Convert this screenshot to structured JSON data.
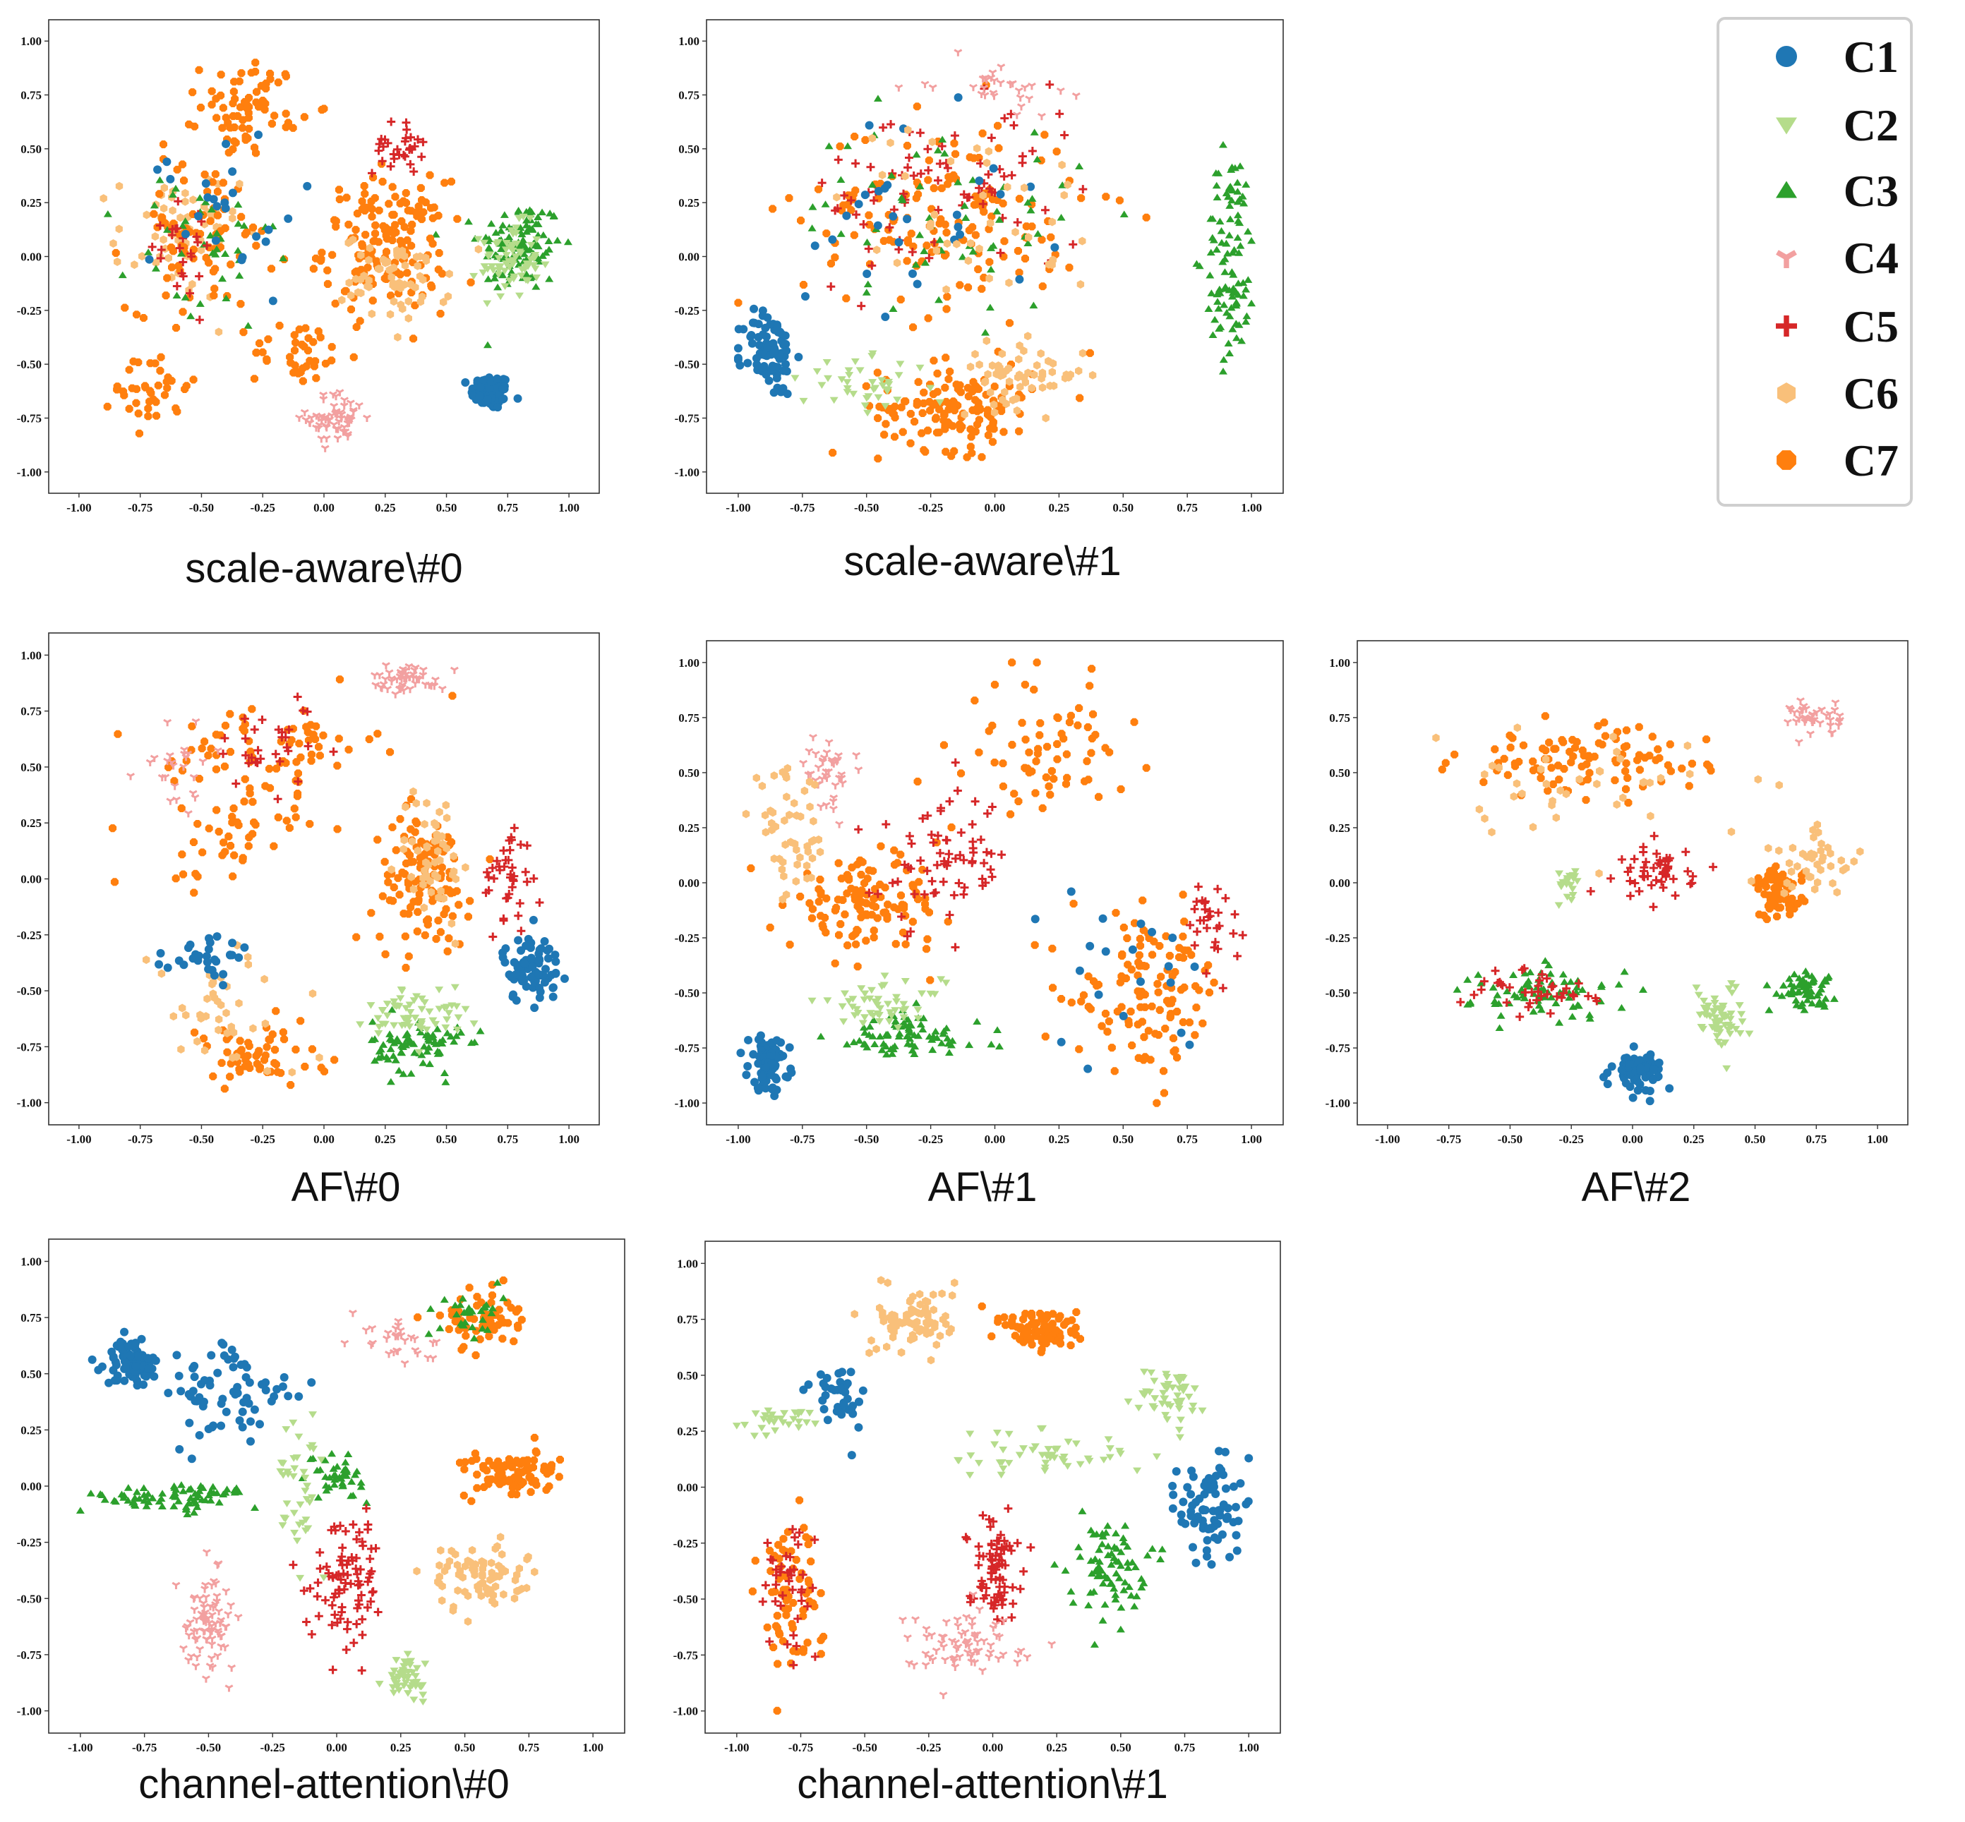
{
  "colors": {
    "C1": "#1f77b4",
    "C2": "#b5dc8b",
    "C3": "#2ca02c",
    "C4": "#f2a0a0",
    "C5": "#d62728",
    "C6": "#f9c07a",
    "C7": "#ff7f0e"
  },
  "legend": [
    {
      "label": "C1",
      "marker": "circle"
    },
    {
      "label": "C2",
      "marker": "triangle-down"
    },
    {
      "label": "C3",
      "marker": "triangle-up"
    },
    {
      "label": "C4",
      "marker": "tri-down"
    },
    {
      "label": "C5",
      "marker": "plus"
    },
    {
      "label": "C6",
      "marker": "hexagon"
    },
    {
      "label": "C7",
      "marker": "octagon"
    }
  ],
  "chart_data": [
    {
      "type": "scatter",
      "title": "scale-aware\\#0",
      "xlim": [
        -1.0,
        1.0
      ],
      "ylim": [
        -1.0,
        1.0
      ],
      "xticks": [
        "-1.00",
        "-0.75",
        "-0.50",
        "-0.25",
        "0.00",
        "0.25",
        "0.50",
        "0.75",
        "1.00"
      ],
      "yticks": [
        "1.00",
        "0.75",
        "0.50",
        "0.25",
        "0.00",
        "-0.25",
        "-0.50",
        "-0.75",
        "-1.00"
      ],
      "clusters": [
        {
          "class": "C1",
          "cx": 0.68,
          "cy": -0.63,
          "rx": 0.08,
          "ry": 0.08,
          "n": 90
        },
        {
          "class": "C3",
          "cx": 0.8,
          "cy": 0.05,
          "rx": 0.17,
          "ry": 0.22,
          "n": 110
        },
        {
          "class": "C2",
          "cx": 0.76,
          "cy": -0.02,
          "rx": 0.12,
          "ry": 0.17,
          "n": 70
        },
        {
          "class": "C4",
          "cx": 0.05,
          "cy": -0.75,
          "rx": 0.12,
          "ry": 0.12,
          "n": 60
        },
        {
          "class": "C7",
          "cx": 0.25,
          "cy": 0.05,
          "rx": 0.25,
          "ry": 0.3,
          "n": 160
        },
        {
          "class": "C6",
          "cx": 0.3,
          "cy": -0.1,
          "rx": 0.22,
          "ry": 0.2,
          "n": 60
        },
        {
          "class": "C5",
          "cx": 0.3,
          "cy": 0.5,
          "rx": 0.1,
          "ry": 0.12,
          "n": 30
        },
        {
          "class": "C7",
          "cx": -0.3,
          "cy": 0.7,
          "rx": 0.2,
          "ry": 0.2,
          "n": 70
        },
        {
          "class": "C6",
          "cx": -0.6,
          "cy": 0.1,
          "rx": 0.25,
          "ry": 0.3,
          "n": 60
        },
        {
          "class": "C7",
          "cx": -0.5,
          "cy": 0.1,
          "rx": 0.3,
          "ry": 0.35,
          "n": 80
        },
        {
          "class": "C3",
          "cx": -0.5,
          "cy": 0.0,
          "rx": 0.3,
          "ry": 0.4,
          "n": 40
        },
        {
          "class": "C5",
          "cx": -0.6,
          "cy": 0.1,
          "rx": 0.2,
          "ry": 0.3,
          "n": 25
        },
        {
          "class": "C1",
          "cx": -0.4,
          "cy": 0.2,
          "rx": 0.3,
          "ry": 0.4,
          "n": 25
        },
        {
          "class": "C7",
          "cx": -0.7,
          "cy": -0.6,
          "rx": 0.15,
          "ry": 0.2,
          "n": 40
        },
        {
          "class": "C7",
          "cx": -0.1,
          "cy": -0.45,
          "rx": 0.2,
          "ry": 0.15,
          "n": 40
        }
      ]
    },
    {
      "type": "scatter",
      "title": "scale-aware\\#1",
      "xlim": [
        -1.0,
        1.0
      ],
      "ylim": [
        -1.0,
        1.0
      ],
      "xticks": [
        "-1.00",
        "-0.75",
        "-0.50",
        "-0.25",
        "0.00",
        "0.25",
        "0.50",
        "0.75",
        "1.00"
      ],
      "yticks": [
        "1.00",
        "0.75",
        "0.50",
        "0.25",
        "0.00",
        "-0.25",
        "-0.50",
        "-0.75",
        "-1.00"
      ],
      "clusters": [
        {
          "class": "C1",
          "cx": -0.88,
          "cy": -0.45,
          "rx": 0.1,
          "ry": 0.2,
          "n": 90
        },
        {
          "class": "C3",
          "cx": 0.92,
          "cy": 0.0,
          "rx": 0.1,
          "ry": 0.5,
          "n": 100
        },
        {
          "class": "C7",
          "cx": -0.15,
          "cy": -0.7,
          "rx": 0.3,
          "ry": 0.2,
          "n": 140
        },
        {
          "class": "C6",
          "cx": 0.1,
          "cy": -0.55,
          "rx": 0.25,
          "ry": 0.15,
          "n": 60
        },
        {
          "class": "C2",
          "cx": -0.5,
          "cy": -0.6,
          "rx": 0.25,
          "ry": 0.12,
          "n": 40
        },
        {
          "class": "C7",
          "cx": -0.2,
          "cy": 0.2,
          "rx": 0.55,
          "ry": 0.45,
          "n": 150
        },
        {
          "class": "C5",
          "cx": -0.2,
          "cy": 0.3,
          "rx": 0.55,
          "ry": 0.4,
          "n": 80
        },
        {
          "class": "C3",
          "cx": -0.2,
          "cy": 0.2,
          "rx": 0.55,
          "ry": 0.45,
          "n": 60
        },
        {
          "class": "C1",
          "cx": -0.3,
          "cy": 0.2,
          "rx": 0.5,
          "ry": 0.45,
          "n": 30
        },
        {
          "class": "C4",
          "cx": 0.0,
          "cy": 0.8,
          "rx": 0.25,
          "ry": 0.12,
          "n": 30
        },
        {
          "class": "C6",
          "cx": -0.1,
          "cy": 0.2,
          "rx": 0.5,
          "ry": 0.45,
          "n": 40
        }
      ]
    },
    {
      "type": "scatter",
      "title": "AF\\#0",
      "xlim": [
        -1.0,
        1.0
      ],
      "ylim": [
        -1.0,
        1.0
      ],
      "xticks": [
        "-1.00",
        "-0.75",
        "-0.50",
        "-0.25",
        "0.00",
        "0.25",
        "0.50",
        "0.75",
        "1.00"
      ],
      "yticks": [
        "1.00",
        "0.75",
        "0.50",
        "0.25",
        "0.00",
        "-0.25",
        "-0.50",
        "-0.75",
        "-1.00"
      ],
      "clusters": [
        {
          "class": "C1",
          "cx": 0.85,
          "cy": -0.4,
          "rx": 0.12,
          "ry": 0.15,
          "n": 80
        },
        {
          "class": "C3",
          "cx": 0.38,
          "cy": -0.75,
          "rx": 0.18,
          "ry": 0.12,
          "n": 80
        },
        {
          "class": "C2",
          "cx": 0.38,
          "cy": -0.6,
          "rx": 0.2,
          "ry": 0.12,
          "n": 60
        },
        {
          "class": "C4",
          "cx": 0.35,
          "cy": 0.9,
          "rx": 0.15,
          "ry": 0.06,
          "n": 50
        },
        {
          "class": "C7",
          "cx": 0.4,
          "cy": 0.0,
          "rx": 0.2,
          "ry": 0.3,
          "n": 120
        },
        {
          "class": "C6",
          "cx": 0.45,
          "cy": 0.1,
          "rx": 0.15,
          "ry": 0.3,
          "n": 50
        },
        {
          "class": "C5",
          "cx": 0.75,
          "cy": 0.0,
          "rx": 0.1,
          "ry": 0.25,
          "n": 40
        },
        {
          "class": "C7",
          "cx": -0.2,
          "cy": 0.6,
          "rx": 0.4,
          "ry": 0.2,
          "n": 70
        },
        {
          "class": "C7",
          "cx": -0.3,
          "cy": -0.8,
          "rx": 0.3,
          "ry": 0.15,
          "n": 60
        },
        {
          "class": "C6",
          "cx": -0.4,
          "cy": -0.6,
          "rx": 0.3,
          "ry": 0.3,
          "n": 40
        },
        {
          "class": "C1",
          "cx": -0.45,
          "cy": -0.35,
          "rx": 0.2,
          "ry": 0.1,
          "n": 30
        },
        {
          "class": "C7",
          "cx": -0.4,
          "cy": 0.2,
          "rx": 0.3,
          "ry": 0.25,
          "n": 50
        },
        {
          "class": "C5",
          "cx": -0.2,
          "cy": 0.6,
          "rx": 0.3,
          "ry": 0.2,
          "n": 30
        },
        {
          "class": "C4",
          "cx": -0.6,
          "cy": 0.5,
          "rx": 0.15,
          "ry": 0.2,
          "n": 25
        }
      ]
    },
    {
      "type": "scatter",
      "title": "AF\\#1",
      "xlim": [
        -1.0,
        1.0
      ],
      "ylim": [
        -1.0,
        1.0
      ],
      "xticks": [
        "-1.00",
        "-0.75",
        "-0.50",
        "-0.25",
        "0.00",
        "0.25",
        "0.50",
        "0.75",
        "1.00"
      ],
      "yticks": [
        "1.00",
        "0.75",
        "0.50",
        "0.25",
        "0.00",
        "-0.25",
        "-0.50",
        "-0.75",
        "-1.00"
      ],
      "clusters": [
        {
          "class": "C1",
          "cx": -0.88,
          "cy": -0.82,
          "rx": 0.08,
          "ry": 0.12,
          "n": 80
        },
        {
          "class": "C3",
          "cx": -0.35,
          "cy": -0.7,
          "rx": 0.3,
          "ry": 0.12,
          "n": 80
        },
        {
          "class": "C2",
          "cx": -0.45,
          "cy": -0.55,
          "rx": 0.25,
          "ry": 0.1,
          "n": 50
        },
        {
          "class": "C4",
          "cx": -0.65,
          "cy": 0.5,
          "rx": 0.1,
          "ry": 0.15,
          "n": 40
        },
        {
          "class": "C7",
          "cx": -0.5,
          "cy": -0.1,
          "rx": 0.3,
          "ry": 0.2,
          "n": 120
        },
        {
          "class": "C6",
          "cx": -0.8,
          "cy": 0.2,
          "rx": 0.15,
          "ry": 0.3,
          "n": 50
        },
        {
          "class": "C5",
          "cx": -0.2,
          "cy": 0.1,
          "rx": 0.25,
          "ry": 0.3,
          "n": 70
        },
        {
          "class": "C7",
          "cx": 0.6,
          "cy": -0.5,
          "rx": 0.3,
          "ry": 0.35,
          "n": 120
        },
        {
          "class": "C7",
          "cx": 0.2,
          "cy": 0.6,
          "rx": 0.3,
          "ry": 0.3,
          "n": 70
        },
        {
          "class": "C5",
          "cx": 0.85,
          "cy": -0.2,
          "rx": 0.1,
          "ry": 0.2,
          "n": 30
        },
        {
          "class": "C1",
          "cx": 0.5,
          "cy": -0.4,
          "rx": 0.3,
          "ry": 0.4,
          "n": 20
        }
      ]
    },
    {
      "type": "scatter",
      "title": "AF\\#2",
      "xlim": [
        -1.0,
        1.0
      ],
      "ylim": [
        -1.0,
        1.0
      ],
      "xticks": [
        "-1.00",
        "-0.75",
        "-0.50",
        "-0.25",
        "0.00",
        "0.25",
        "0.50",
        "0.75",
        "1.00"
      ],
      "yticks": [
        "1.00",
        "0.75",
        "0.50",
        "0.25",
        "0.00",
        "-0.25",
        "-0.50",
        "-0.75",
        "-1.00"
      ],
      "clusters": [
        {
          "class": "C1",
          "cx": 0.02,
          "cy": -0.85,
          "rx": 0.1,
          "ry": 0.08,
          "n": 80
        },
        {
          "class": "C3",
          "cx": 0.7,
          "cy": -0.48,
          "rx": 0.12,
          "ry": 0.08,
          "n": 60
        },
        {
          "class": "C2",
          "cx": 0.35,
          "cy": -0.6,
          "rx": 0.1,
          "ry": 0.15,
          "n": 60
        },
        {
          "class": "C3",
          "cx": -0.35,
          "cy": -0.5,
          "rx": 0.3,
          "ry": 0.12,
          "n": 80
        },
        {
          "class": "C5",
          "cx": -0.4,
          "cy": -0.5,
          "rx": 0.3,
          "ry": 0.12,
          "n": 40
        },
        {
          "class": "C4",
          "cx": 0.75,
          "cy": 0.75,
          "rx": 0.1,
          "ry": 0.08,
          "n": 40
        },
        {
          "class": "C5",
          "cx": 0.1,
          "cy": 0.05,
          "rx": 0.15,
          "ry": 0.12,
          "n": 50
        },
        {
          "class": "C7",
          "cx": 0.6,
          "cy": -0.05,
          "rx": 0.1,
          "ry": 0.12,
          "n": 70
        },
        {
          "class": "C6",
          "cx": 0.75,
          "cy": 0.1,
          "rx": 0.2,
          "ry": 0.15,
          "n": 40
        },
        {
          "class": "C7",
          "cx": -0.2,
          "cy": 0.55,
          "rx": 0.5,
          "ry": 0.15,
          "n": 100
        },
        {
          "class": "C6",
          "cx": -0.3,
          "cy": 0.4,
          "rx": 0.55,
          "ry": 0.25,
          "n": 40
        },
        {
          "class": "C2",
          "cx": -0.25,
          "cy": 0.0,
          "rx": 0.08,
          "ry": 0.08,
          "n": 20
        }
      ]
    },
    {
      "type": "scatter",
      "title": "channel-attention\\#0",
      "xlim": [
        -1.0,
        1.0
      ],
      "ylim": [
        -1.0,
        1.0
      ],
      "xticks": [
        "-1.00",
        "-0.75",
        "-0.50",
        "-0.25",
        "0.00",
        "0.25",
        "0.50",
        "0.75",
        "1.00"
      ],
      "yticks": [
        "1.00",
        "0.75",
        "0.50",
        "0.25",
        "0.00",
        "-0.25",
        "-0.50",
        "-0.75",
        "-1.00"
      ],
      "clusters": [
        {
          "class": "C1",
          "cx": -0.8,
          "cy": 0.55,
          "rx": 0.1,
          "ry": 0.1,
          "n": 80
        },
        {
          "class": "C1",
          "cx": -0.4,
          "cy": 0.4,
          "rx": 0.25,
          "ry": 0.25,
          "n": 70
        },
        {
          "class": "C3",
          "cx": -0.65,
          "cy": -0.05,
          "rx": 0.35,
          "ry": 0.06,
          "n": 80
        },
        {
          "class": "C3",
          "cx": 0.0,
          "cy": 0.05,
          "rx": 0.1,
          "ry": 0.1,
          "n": 40
        },
        {
          "class": "C4",
          "cx": -0.5,
          "cy": -0.6,
          "rx": 0.1,
          "ry": 0.2,
          "n": 80
        },
        {
          "class": "C5",
          "cx": 0.05,
          "cy": -0.4,
          "rx": 0.15,
          "ry": 0.3,
          "n": 90
        },
        {
          "class": "C2",
          "cx": 0.27,
          "cy": -0.85,
          "rx": 0.07,
          "ry": 0.08,
          "n": 50
        },
        {
          "class": "C2",
          "cx": -0.15,
          "cy": 0.0,
          "rx": 0.1,
          "ry": 0.3,
          "n": 40
        },
        {
          "class": "C6",
          "cx": 0.55,
          "cy": -0.4,
          "rx": 0.18,
          "ry": 0.15,
          "n": 80
        },
        {
          "class": "C7",
          "cx": 0.7,
          "cy": 0.05,
          "rx": 0.2,
          "ry": 0.1,
          "n": 90
        },
        {
          "class": "C7",
          "cx": 0.55,
          "cy": 0.75,
          "rx": 0.15,
          "ry": 0.12,
          "n": 60
        },
        {
          "class": "C3",
          "cx": 0.5,
          "cy": 0.75,
          "rx": 0.15,
          "ry": 0.12,
          "n": 30
        },
        {
          "class": "C4",
          "cx": 0.25,
          "cy": 0.65,
          "rx": 0.15,
          "ry": 0.12,
          "n": 30
        }
      ]
    },
    {
      "type": "scatter",
      "title": "channel-attention\\#1",
      "xlim": [
        -1.0,
        1.0
      ],
      "ylim": [
        -1.0,
        1.0
      ],
      "xticks": [
        "-1.00",
        "-0.75",
        "-0.50",
        "-0.25",
        "0.00",
        "0.25",
        "0.50",
        "0.75",
        "1.00"
      ],
      "yticks": [
        "1.00",
        "0.75",
        "0.50",
        "0.25",
        "0.00",
        "-0.25",
        "-0.50",
        "-0.75",
        "-1.00"
      ],
      "clusters": [
        {
          "class": "C6",
          "cx": -0.3,
          "cy": 0.75,
          "rx": 0.15,
          "ry": 0.15,
          "n": 80
        },
        {
          "class": "C7",
          "cx": 0.2,
          "cy": 0.7,
          "rx": 0.15,
          "ry": 0.1,
          "n": 90
        },
        {
          "class": "C2",
          "cx": 0.7,
          "cy": 0.4,
          "rx": 0.12,
          "ry": 0.15,
          "n": 50
        },
        {
          "class": "C2",
          "cx": 0.2,
          "cy": 0.15,
          "rx": 0.4,
          "ry": 0.1,
          "n": 50
        },
        {
          "class": "C1",
          "cx": 0.85,
          "cy": -0.1,
          "rx": 0.12,
          "ry": 0.25,
          "n": 80
        },
        {
          "class": "C3",
          "cx": 0.45,
          "cy": -0.35,
          "rx": 0.15,
          "ry": 0.2,
          "n": 80
        },
        {
          "class": "C5",
          "cx": 0.0,
          "cy": -0.35,
          "rx": 0.1,
          "ry": 0.22,
          "n": 80
        },
        {
          "class": "C4",
          "cx": -0.1,
          "cy": -0.7,
          "rx": 0.25,
          "ry": 0.15,
          "n": 70
        },
        {
          "class": "C7",
          "cx": -0.8,
          "cy": -0.45,
          "rx": 0.12,
          "ry": 0.35,
          "n": 70
        },
        {
          "class": "C5",
          "cx": -0.8,
          "cy": -0.45,
          "rx": 0.12,
          "ry": 0.35,
          "n": 40
        },
        {
          "class": "C1",
          "cx": -0.6,
          "cy": 0.4,
          "rx": 0.1,
          "ry": 0.15,
          "n": 40
        },
        {
          "class": "C2",
          "cx": -0.85,
          "cy": 0.3,
          "rx": 0.15,
          "ry": 0.05,
          "n": 30
        }
      ]
    }
  ]
}
